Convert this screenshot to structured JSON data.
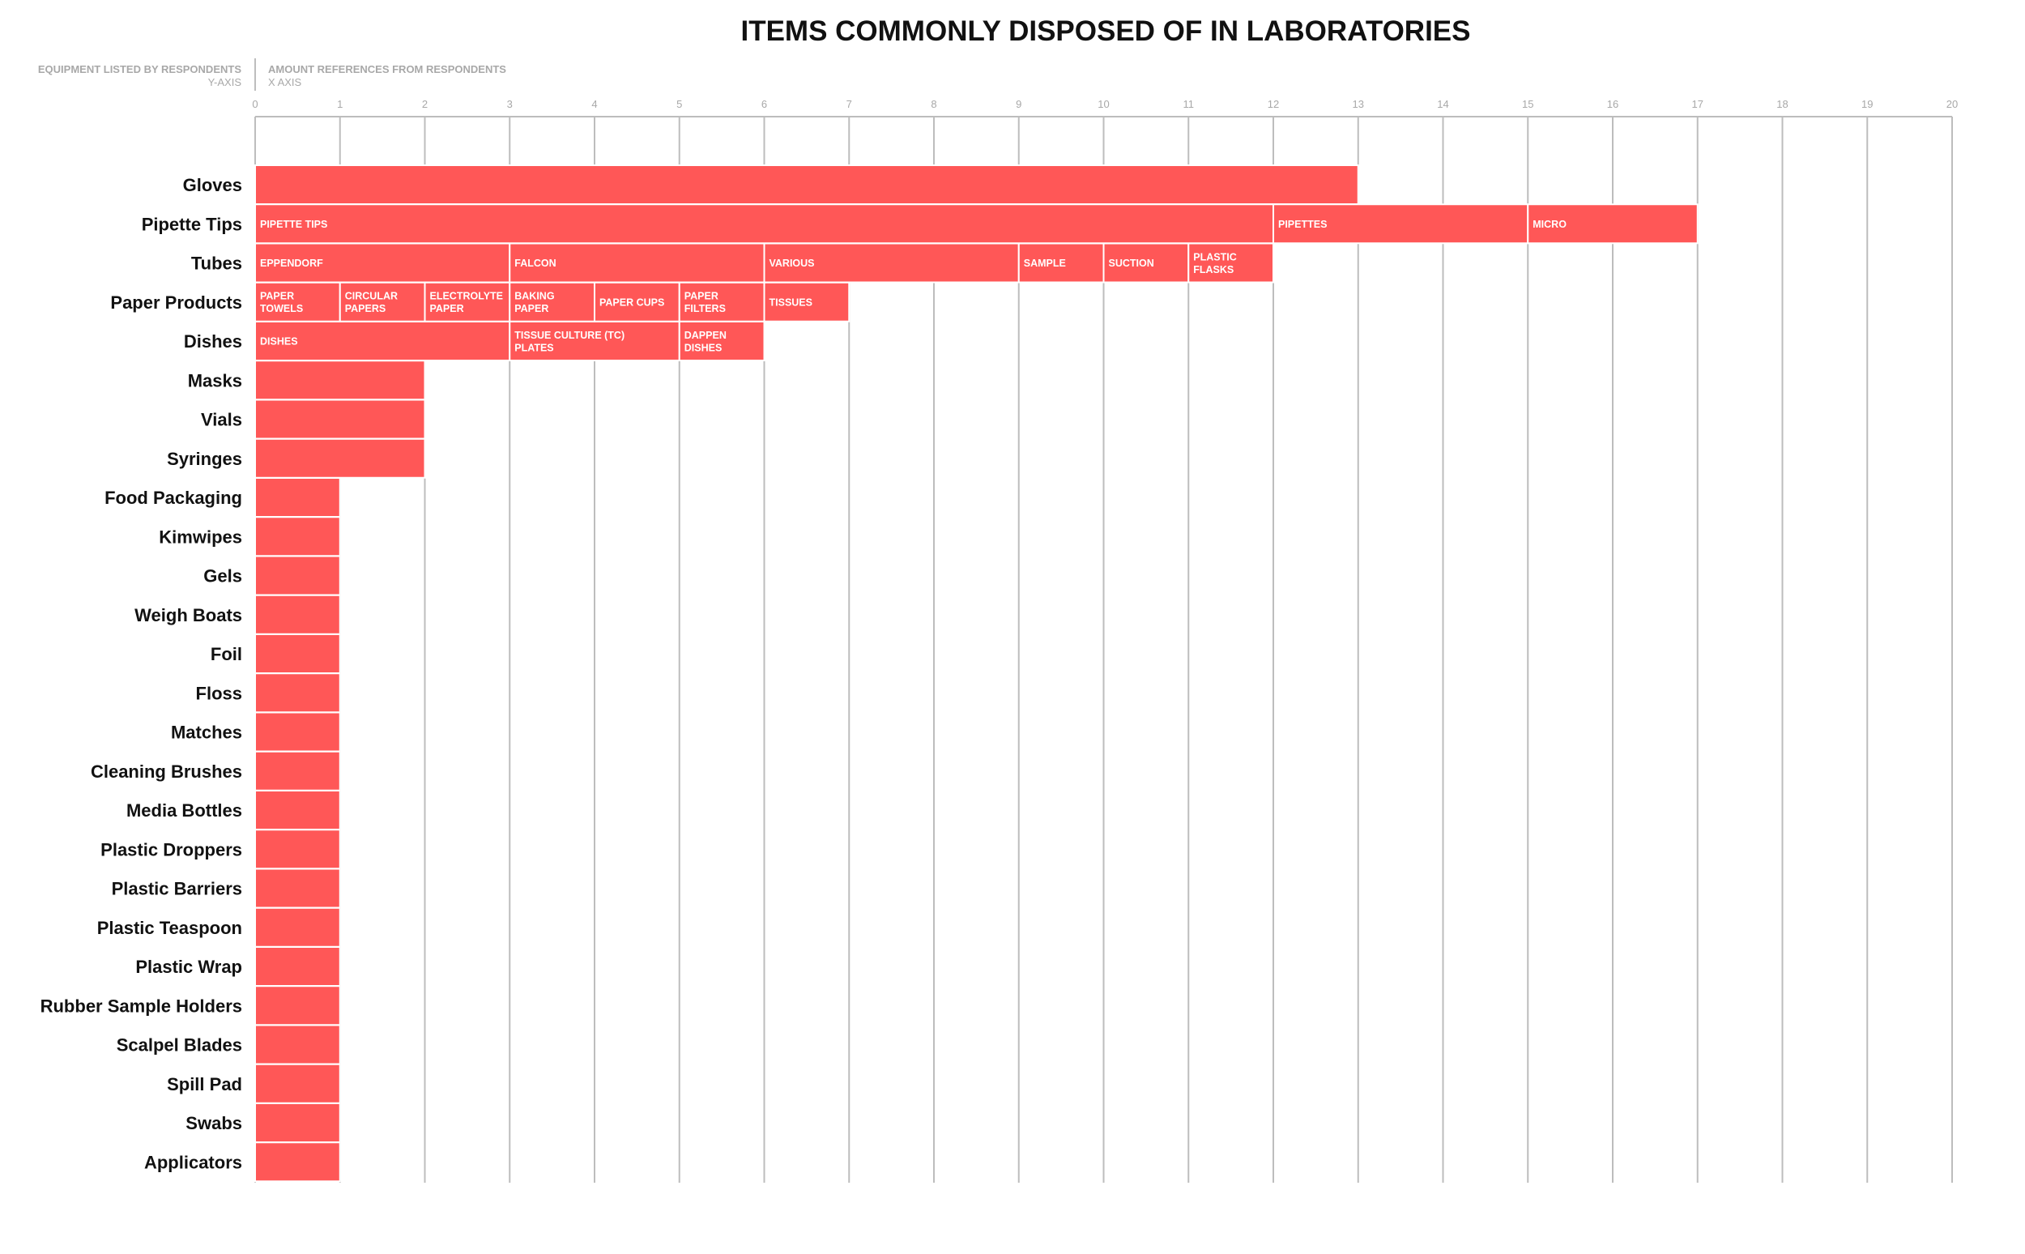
{
  "chart_data": {
    "type": "bar",
    "orientation": "horizontal",
    "stacked": true,
    "title": "ITEMS COMMONLY DISPOSED OF IN LABORATORIES",
    "ylabel": "EQUIPMENT LISTED BY RESPONDENTS",
    "ylabel_sub": "Y-AXIS",
    "xlabel": "AMOUNT REFERENCES FROM RESPONDENTS",
    "xlabel_sub": "X AXIS",
    "xlim": [
      0,
      20
    ],
    "xticks": [
      0,
      1,
      2,
      3,
      4,
      5,
      6,
      7,
      8,
      9,
      10,
      11,
      12,
      13,
      14,
      15,
      16,
      17,
      18,
      19,
      20
    ],
    "grid": true,
    "bar_color": "#ff5757",
    "categories": [
      "Gloves",
      "Pipette Tips",
      "Tubes",
      "Paper Products",
      "Dishes",
      "Masks",
      "Vials",
      "Syringes",
      "Food Packaging",
      "Kimwipes",
      "Gels",
      "Weigh Boats",
      "Foil",
      "Floss",
      "Matches",
      "Cleaning Brushes",
      "Media Bottles",
      "Plastic Droppers",
      "Plastic Barriers",
      "Plastic Teaspoon",
      "Plastic Wrap",
      "Rubber Sample Holders",
      "Scalpel Blades",
      "Spill Pad",
      "Swabs",
      "Applicators"
    ],
    "bars": [
      {
        "category": "Gloves",
        "segments": [
          {
            "label": "",
            "value": 13
          }
        ]
      },
      {
        "category": "Pipette Tips",
        "segments": [
          {
            "label": "PIPETTE TIPS",
            "value": 12
          },
          {
            "label": "PIPETTES",
            "value": 3
          },
          {
            "label": "MICRO",
            "value": 2
          }
        ]
      },
      {
        "category": "Tubes",
        "segments": [
          {
            "label": "EPPENDORF",
            "value": 3
          },
          {
            "label": "FALCON",
            "value": 3
          },
          {
            "label": "VARIOUS",
            "value": 3
          },
          {
            "label": "SAMPLE",
            "value": 1
          },
          {
            "label": "SUCTION",
            "value": 1
          },
          {
            "label": "PLASTIC FLASKS",
            "value": 1
          }
        ]
      },
      {
        "category": "Paper Products",
        "segments": [
          {
            "label": "PAPER TOWELS",
            "value": 1
          },
          {
            "label": "CIRCULAR PAPERS",
            "value": 1
          },
          {
            "label": "ELECTROLYTE PAPER",
            "value": 1
          },
          {
            "label": "BAKING PAPER",
            "value": 1
          },
          {
            "label": "PAPER CUPS",
            "value": 1
          },
          {
            "label": "PAPER FILTERS",
            "value": 1
          },
          {
            "label": "TISSUES",
            "value": 1
          }
        ]
      },
      {
        "category": "Dishes",
        "segments": [
          {
            "label": "DISHES",
            "value": 3
          },
          {
            "label": "TISSUE CULTURE (TC) PLATES",
            "value": 2
          },
          {
            "label": "DAPPEN DISHES",
            "value": 1
          }
        ]
      },
      {
        "category": "Masks",
        "segments": [
          {
            "label": "",
            "value": 2
          }
        ]
      },
      {
        "category": "Vials",
        "segments": [
          {
            "label": "",
            "value": 2
          }
        ]
      },
      {
        "category": "Syringes",
        "segments": [
          {
            "label": "",
            "value": 2
          }
        ]
      },
      {
        "category": "Food Packaging",
        "segments": [
          {
            "label": "",
            "value": 1
          }
        ]
      },
      {
        "category": "Kimwipes",
        "segments": [
          {
            "label": "",
            "value": 1
          }
        ]
      },
      {
        "category": "Gels",
        "segments": [
          {
            "label": "",
            "value": 1
          }
        ]
      },
      {
        "category": "Weigh Boats",
        "segments": [
          {
            "label": "",
            "value": 1
          }
        ]
      },
      {
        "category": "Foil",
        "segments": [
          {
            "label": "",
            "value": 1
          }
        ]
      },
      {
        "category": "Floss",
        "segments": [
          {
            "label": "",
            "value": 1
          }
        ]
      },
      {
        "category": "Matches",
        "segments": [
          {
            "label": "",
            "value": 1
          }
        ]
      },
      {
        "category": "Cleaning Brushes",
        "segments": [
          {
            "label": "",
            "value": 1
          }
        ]
      },
      {
        "category": "Media Bottles",
        "segments": [
          {
            "label": "",
            "value": 1
          }
        ]
      },
      {
        "category": "Plastic Droppers",
        "segments": [
          {
            "label": "",
            "value": 1
          }
        ]
      },
      {
        "category": "Plastic Barriers",
        "segments": [
          {
            "label": "",
            "value": 1
          }
        ]
      },
      {
        "category": "Plastic Teaspoon",
        "segments": [
          {
            "label": "",
            "value": 1
          }
        ]
      },
      {
        "category": "Plastic Wrap",
        "segments": [
          {
            "label": "",
            "value": 1
          }
        ]
      },
      {
        "category": "Rubber Sample Holders",
        "segments": [
          {
            "label": "",
            "value": 1
          }
        ]
      },
      {
        "category": "Scalpel Blades",
        "segments": [
          {
            "label": "",
            "value": 1
          }
        ]
      },
      {
        "category": "Spill Pad",
        "segments": [
          {
            "label": "",
            "value": 1
          }
        ]
      },
      {
        "category": "Swabs",
        "segments": [
          {
            "label": "",
            "value": 1
          }
        ]
      },
      {
        "category": "Applicators",
        "segments": [
          {
            "label": "",
            "value": 1
          }
        ]
      }
    ]
  }
}
